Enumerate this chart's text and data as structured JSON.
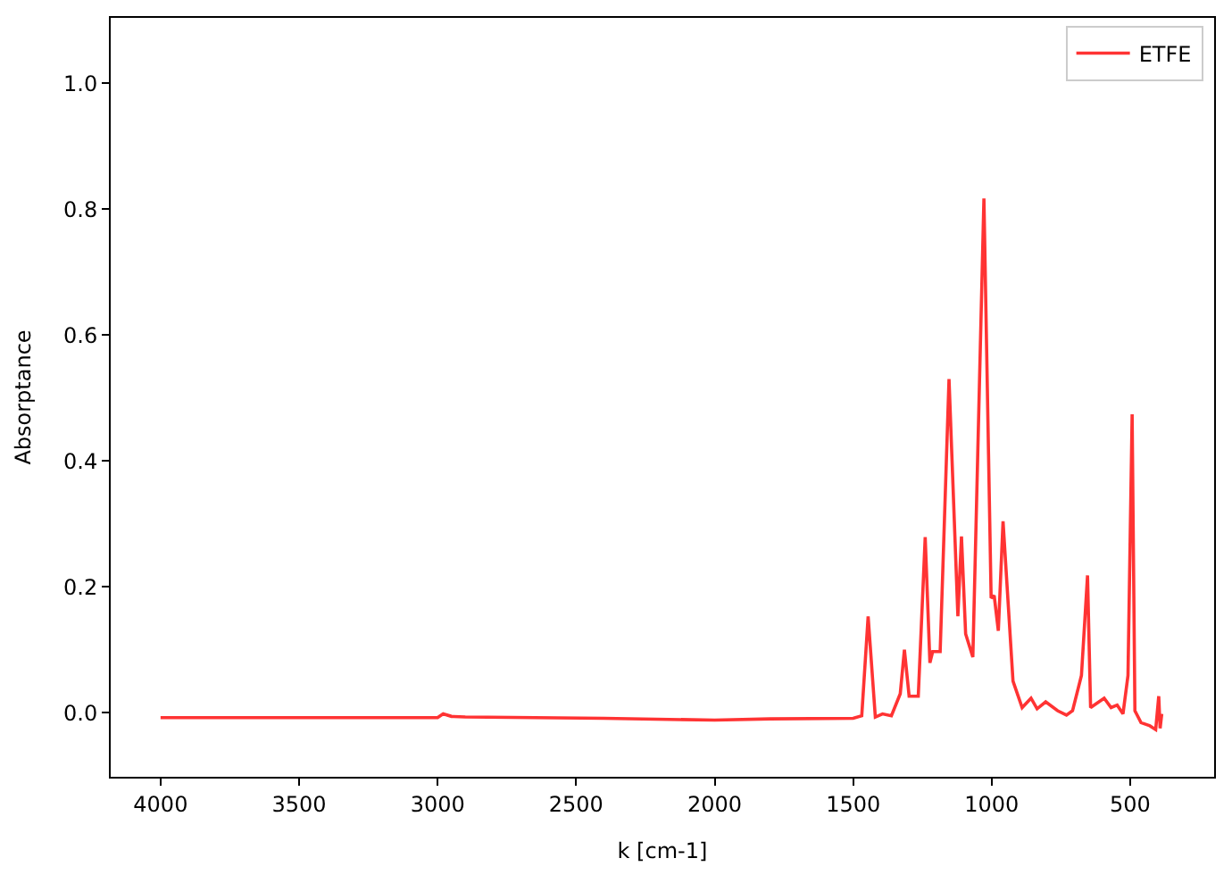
{
  "chart_data": {
    "type": "line",
    "xlabel": "k [cm-1]",
    "ylabel": "Absorptance",
    "xlim": [
      4180,
      197
    ],
    "ylim": [
      -0.102,
      1.104
    ],
    "xticks": [
      4000,
      3500,
      3000,
      2500,
      2000,
      1500,
      1000,
      500
    ],
    "yticks": [
      {
        "value": 0,
        "label": "0.0"
      },
      {
        "value": 0.2,
        "label": "0.2"
      },
      {
        "value": 0.4,
        "label": "0.4"
      },
      {
        "value": 0.6,
        "label": "0.6"
      },
      {
        "value": 0.8,
        "label": "0.8"
      },
      {
        "value": 1.0,
        "label": "1.0"
      }
    ],
    "legend": "top right",
    "marker": "none",
    "line_style": "solid",
    "x": [
      4000,
      3500,
      3000,
      2980,
      2950,
      2900,
      2400,
      2000,
      1800,
      1500,
      1469,
      1446,
      1420,
      1394,
      1362,
      1330,
      1315,
      1298,
      1265,
      1240,
      1223,
      1213,
      1186,
      1154,
      1122,
      1109,
      1094,
      1068,
      1028,
      1002,
      991,
      976,
      959,
      923,
      890,
      858,
      836,
      805,
      762,
      730,
      708,
      676,
      654,
      643,
      594,
      569,
      547,
      526,
      508,
      493,
      483,
      461,
      429,
      408,
      397,
      392,
      386
    ],
    "series": [
      {
        "name": "ETFE",
        "color": "#ff3333",
        "values": [
          -0.008,
          -0.008,
          -0.008,
          -0.002,
          -0.006,
          -0.007,
          -0.009,
          -0.012,
          -0.01,
          -0.009,
          -0.005,
          0.153,
          -0.007,
          -0.002,
          -0.005,
          0.03,
          0.1,
          0.026,
          0.026,
          0.279,
          0.079,
          0.097,
          0.097,
          0.53,
          0.153,
          0.28,
          0.125,
          0.088,
          0.817,
          0.182,
          0.186,
          0.13,
          0.304,
          0.05,
          0.008,
          0.023,
          0.006,
          0.017,
          0.003,
          -0.004,
          0.003,
          0.059,
          0.218,
          0.008,
          0.023,
          0.008,
          0.012,
          -0.002,
          0.059,
          0.474,
          0.003,
          -0.016,
          -0.021,
          -0.027,
          0.026,
          -0.025,
          -0.002
        ]
      }
    ]
  }
}
